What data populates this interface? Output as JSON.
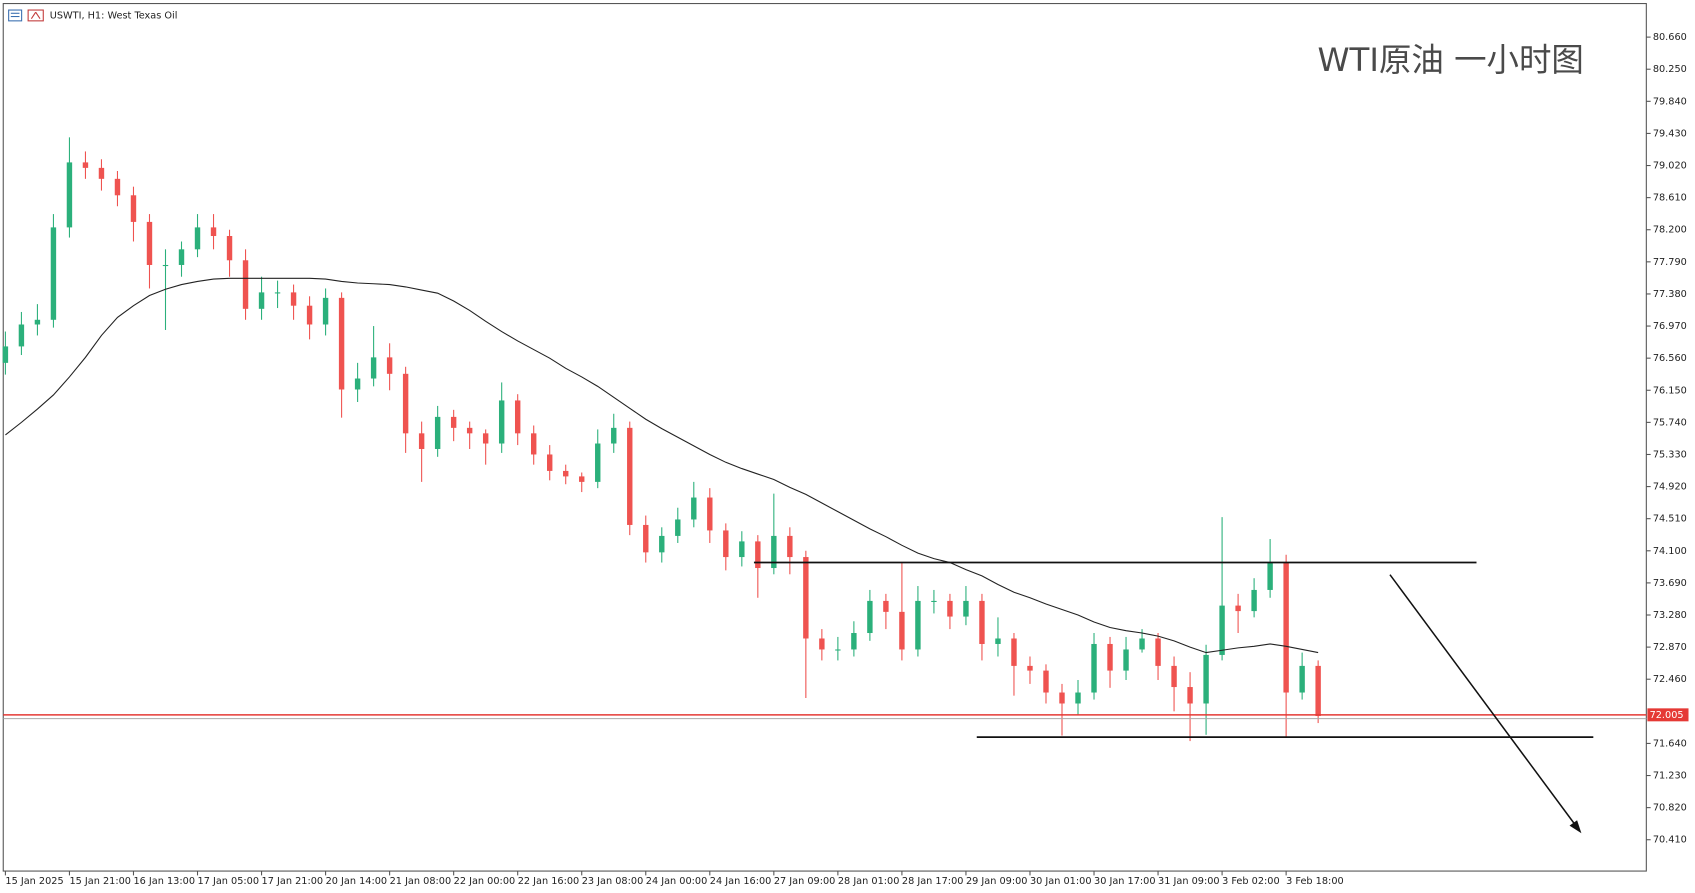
{
  "chart_data": {
    "type": "candlestick",
    "header": "USWTI, H1:  West Texas Oil",
    "title": "WTI原油 一小时图",
    "x": [
      "15 Jan 2025",
      null,
      null,
      null,
      "15 Jan 21:00",
      null,
      null,
      null,
      "16 Jan 13:00",
      null,
      null,
      null,
      "17 Jan 05:00",
      null,
      null,
      null,
      "17 Jan 21:00",
      null,
      null,
      null,
      "20 Jan 14:00",
      null,
      null,
      null,
      "21 Jan 08:00",
      null,
      null,
      null,
      "22 Jan 00:00",
      null,
      null,
      null,
      "22 Jan 16:00",
      null,
      null,
      null,
      "23 Jan 08:00",
      null,
      null,
      null,
      "24 Jan 00:00",
      null,
      null,
      null,
      "24 Jan 16:00",
      null,
      null,
      null,
      "27 Jan 09:00",
      null,
      null,
      null,
      "28 Jan 01:00",
      null,
      null,
      null,
      "28 Jan 17:00",
      null,
      null,
      null,
      "29 Jan 09:00",
      null,
      null,
      null,
      "30 Jan 01:00",
      null,
      null,
      null,
      "30 Jan 17:00",
      null,
      null,
      null,
      "31 Jan 09:00",
      null,
      null,
      null,
      "3 Feb 02:00",
      null,
      null,
      null,
      "3 Feb 18:00",
      null,
      null
    ],
    "open": [
      76.5,
      76.71,
      76.99,
      77.05,
      78.23,
      79.06,
      78.99,
      78.85,
      78.64,
      78.3,
      77.75,
      77.75,
      77.95,
      78.23,
      78.12,
      77.81,
      77.19,
      77.4,
      77.4,
      77.23,
      76.99,
      77.33,
      76.16,
      76.3,
      76.57,
      76.36,
      75.6,
      75.4,
      75.81,
      75.67,
      75.6,
      75.47,
      76.02,
      75.6,
      75.33,
      75.12,
      75.05,
      74.98,
      75.47,
      75.67,
      74.43,
      74.08,
      74.29,
      74.5,
      74.78,
      74.36,
      74.02,
      74.22,
      73.88,
      74.29,
      74.02,
      72.98,
      72.84,
      72.84,
      73.05,
      73.46,
      73.32,
      72.84,
      73.46,
      73.46,
      73.26,
      73.46,
      72.91,
      72.98,
      72.63,
      72.57,
      72.29,
      72.15,
      72.29,
      72.91,
      72.57,
      72.84,
      72.98,
      72.63,
      72.36,
      72.15,
      72.77,
      73.4,
      73.33,
      73.6,
      73.95,
      72.29,
      72.63
    ],
    "high": [
      76.9,
      77.15,
      77.25,
      78.4,
      79.38,
      79.2,
      79.1,
      78.95,
      78.75,
      78.4,
      77.95,
      78.05,
      78.4,
      78.4,
      78.2,
      77.95,
      77.6,
      77.55,
      77.5,
      77.35,
      77.45,
      77.4,
      76.5,
      76.97,
      76.75,
      76.45,
      75.75,
      75.95,
      75.9,
      75.75,
      75.65,
      76.25,
      76.1,
      75.7,
      75.45,
      75.2,
      75.1,
      75.65,
      75.85,
      75.75,
      74.55,
      74.4,
      74.65,
      74.98,
      74.9,
      74.45,
      74.35,
      74.3,
      74.83,
      74.4,
      74.1,
      73.1,
      73.0,
      73.2,
      73.6,
      73.55,
      73.95,
      73.65,
      73.6,
      73.55,
      73.65,
      73.55,
      73.25,
      73.05,
      72.75,
      72.65,
      72.4,
      72.45,
      73.05,
      73.0,
      73.0,
      73.1,
      73.05,
      72.75,
      72.55,
      72.9,
      74.53,
      73.55,
      73.75,
      74.25,
      74.05,
      72.8,
      72.7
    ],
    "low": [
      76.35,
      76.6,
      76.85,
      76.95,
      78.1,
      78.85,
      78.7,
      78.5,
      78.05,
      77.45,
      76.92,
      77.6,
      77.85,
      77.95,
      77.6,
      77.05,
      77.05,
      77.2,
      77.05,
      76.8,
      76.85,
      75.8,
      76.0,
      76.2,
      76.15,
      75.35,
      74.98,
      75.3,
      75.5,
      75.4,
      75.2,
      75.35,
      75.45,
      75.2,
      75.0,
      74.95,
      74.85,
      74.9,
      75.35,
      74.3,
      73.95,
      73.95,
      74.2,
      74.4,
      74.2,
      73.85,
      73.9,
      73.5,
      73.8,
      73.8,
      72.22,
      72.7,
      72.7,
      72.75,
      72.95,
      73.1,
      72.7,
      72.75,
      73.3,
      73.1,
      73.15,
      72.7,
      72.75,
      72.25,
      72.4,
      72.15,
      71.74,
      72.0,
      72.2,
      72.35,
      72.45,
      72.8,
      72.45,
      72.05,
      71.67,
      71.75,
      72.7,
      73.05,
      73.25,
      73.5,
      71.71,
      72.2,
      71.9
    ],
    "close": [
      76.71,
      76.99,
      77.05,
      78.23,
      79.06,
      78.99,
      78.85,
      78.64,
      78.3,
      77.75,
      77.75,
      77.95,
      78.23,
      78.12,
      77.81,
      77.19,
      77.4,
      77.4,
      77.23,
      76.99,
      77.33,
      76.16,
      76.3,
      76.57,
      76.36,
      75.6,
      75.4,
      75.81,
      75.67,
      75.6,
      75.47,
      76.02,
      75.6,
      75.33,
      75.12,
      75.05,
      74.98,
      75.47,
      75.67,
      74.43,
      74.08,
      74.29,
      74.5,
      74.78,
      74.36,
      74.02,
      74.22,
      73.88,
      74.29,
      74.02,
      72.98,
      72.84,
      72.84,
      73.05,
      73.46,
      73.32,
      72.84,
      73.46,
      73.46,
      73.26,
      73.46,
      72.91,
      72.98,
      72.63,
      72.57,
      72.29,
      72.15,
      72.29,
      72.91,
      72.57,
      72.84,
      72.98,
      72.63,
      72.36,
      72.15,
      72.77,
      73.4,
      73.33,
      73.6,
      73.95,
      72.29,
      72.63,
      71.99
    ],
    "up_color": "#2bb07b",
    "down_color": "#ef5350",
    "ma": {
      "color": "#222222",
      "values": [
        75.58,
        75.74,
        75.91,
        76.09,
        76.32,
        76.57,
        76.85,
        77.08,
        77.23,
        77.36,
        77.44,
        77.5,
        77.54,
        77.57,
        77.58,
        77.58,
        77.58,
        77.58,
        77.58,
        77.58,
        77.57,
        77.54,
        77.52,
        77.51,
        77.5,
        77.47,
        77.43,
        77.39,
        77.29,
        77.17,
        77.03,
        76.9,
        76.78,
        76.67,
        76.56,
        76.43,
        76.32,
        76.2,
        76.06,
        75.92,
        75.78,
        75.66,
        75.55,
        75.44,
        75.33,
        75.23,
        75.15,
        75.08,
        75.01,
        74.91,
        74.82,
        74.71,
        74.6,
        74.49,
        74.38,
        74.28,
        74.17,
        74.07,
        74.0,
        73.95,
        73.86,
        73.78,
        73.67,
        73.57,
        73.5,
        73.42,
        73.35,
        73.28,
        73.19,
        73.12,
        73.08,
        73.05,
        73.01,
        72.95,
        72.87,
        72.8,
        72.83,
        72.86,
        72.88,
        72.91,
        72.88,
        72.84,
        72.8
      ]
    },
    "resistance": 73.95,
    "support": 71.72,
    "current_price": {
      "value": 72.005,
      "label": "72.005"
    },
    "ylim": [
      70.01,
      81.13
    ],
    "yticks": [
      {
        "value": 80.66,
        "label": "80.660"
      },
      {
        "value": 80.25,
        "label": "80.250"
      },
      {
        "value": 79.84,
        "label": "79.840"
      },
      {
        "value": 79.43,
        "label": "79.430"
      },
      {
        "value": 79.02,
        "label": "79.020"
      },
      {
        "value": 78.61,
        "label": "78.610"
      },
      {
        "value": 78.2,
        "label": "78.200"
      },
      {
        "value": 77.79,
        "label": "77.790"
      },
      {
        "value": 77.38,
        "label": "77.380"
      },
      {
        "value": 76.97,
        "label": "76.970"
      },
      {
        "value": 76.56,
        "label": "76.560"
      },
      {
        "value": 76.15,
        "label": "76.150"
      },
      {
        "value": 75.74,
        "label": "75.740"
      },
      {
        "value": 75.33,
        "label": "75.330"
      },
      {
        "value": 74.92,
        "label": "74.920"
      },
      {
        "value": 74.51,
        "label": "74.510"
      },
      {
        "value": 74.1,
        "label": "74.100"
      },
      {
        "value": 73.69,
        "label": "73.690"
      },
      {
        "value": 73.28,
        "label": "73.280"
      },
      {
        "value": 72.87,
        "label": "72.870"
      },
      {
        "value": 72.46,
        "label": "72.460"
      },
      {
        "value": 71.64,
        "label": "71.640"
      },
      {
        "value": 71.23,
        "label": "71.230"
      },
      {
        "value": 70.82,
        "label": "70.820"
      },
      {
        "value": 70.41,
        "label": "70.410"
      }
    ],
    "grid": false
  }
}
